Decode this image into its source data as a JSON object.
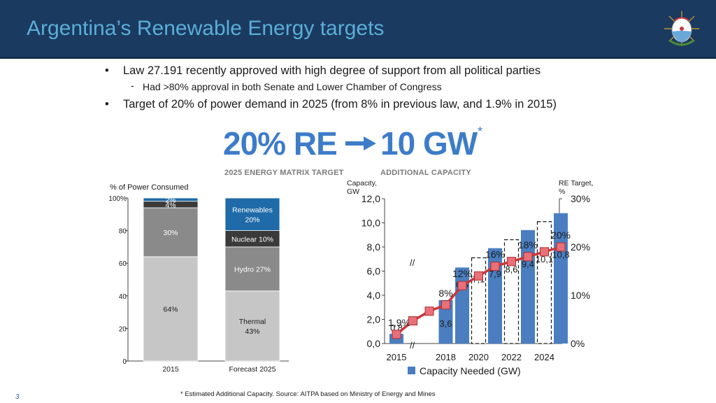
{
  "header": {
    "title": "Argentina’s Renewable Energy targets",
    "seal": "argentina-coat-of-arms-icon"
  },
  "bullets": [
    {
      "text": "Law 27.191 recently approved with high degree of support from all political parties",
      "sub": "Had >80% approval in both Senate and Lower Chamber of Congress"
    },
    {
      "text": "Target of 20% of power demand in 2025 (from 8% in previous law, and 1.9% in 2015)"
    }
  ],
  "headline": {
    "left": "20% RE",
    "right": "10 GW",
    "asterisk": "*",
    "left_sub": "2025 ENERGY MATRIX TARGET",
    "right_sub": "ADDITIONAL CAPACITY",
    "arrow": "right-arrow-icon"
  },
  "colors": {
    "accent": "#3d7cc9",
    "header_bg": "#1b3a60",
    "title": "#5aaed8",
    "capacity_bar": "#4a7ec0",
    "target_line": "#c8383c"
  },
  "chart_data": [
    {
      "type": "bar",
      "stacked": true,
      "ylabel": "% of Power Consumed",
      "ylim": [
        0,
        100
      ],
      "yticks": [
        "0",
        "20",
        "40",
        "60",
        "80",
        "100%"
      ],
      "categories": [
        "2015",
        "Forecast 2025"
      ],
      "series": [
        {
          "values": [
            64,
            43
          ],
          "labels": [
            "64%",
            "Thermal\n43%"
          ],
          "color": "#c6c6c6"
        },
        {
          "values": [
            30,
            27
          ],
          "labels": [
            "30%",
            "Hydro 27%"
          ],
          "color": "#8a8a8a"
        },
        {
          "values": [
            4,
            10
          ],
          "labels": [
            "4%",
            "Nuclear 10%"
          ],
          "color": "#3a3a3a"
        },
        {
          "values": [
            2,
            20
          ],
          "labels": [
            "2%",
            "Renewables\n20%"
          ],
          "color": "#1f6aa8"
        }
      ]
    },
    {
      "type": "bar+line",
      "ylabel": "Capacity,\nGW",
      "y2label": "RE Target,\n%",
      "ylim": [
        0,
        12
      ],
      "y2lim": [
        0,
        30
      ],
      "yticks": [
        "0,0",
        "2,0",
        "4,0",
        "6,0",
        "8,0",
        "10,0",
        "12,0"
      ],
      "y2ticks": [
        "0%",
        "10%",
        "20%",
        "30%"
      ],
      "xticks": [
        "2015",
        "2018",
        "2020",
        "2022",
        "2024"
      ],
      "x": [
        2015,
        2016,
        2017,
        2018,
        2019,
        2020,
        2021,
        2022,
        2023,
        2024,
        2025
      ],
      "bars": {
        "name": "Capacity Needed (GW)",
        "values": [
          0.8,
          null,
          null,
          3.6,
          6.3,
          7.1,
          7.9,
          8.6,
          9.4,
          10.1,
          10.8
        ],
        "labels": [
          "0,8",
          "",
          "",
          "3,6",
          "6,3",
          "7,1",
          "7,9",
          "8,6",
          "9,4",
          "10,1",
          "10,8"
        ],
        "dashed": [
          false,
          false,
          false,
          false,
          false,
          true,
          false,
          true,
          false,
          true,
          false
        ]
      },
      "line": {
        "values": [
          1.9,
          4.7,
          6.7,
          8,
          12,
          14,
          16,
          17,
          18,
          19,
          20
        ],
        "labels": [
          "1,9%",
          "",
          "",
          "8%",
          "12%",
          "",
          "16%",
          "",
          "18%",
          "",
          "20%"
        ]
      },
      "legend": "bottom"
    }
  ],
  "footnote": "* Estimated Additional Capacity. Source: AITPA based on Ministry of Energy and Mines",
  "page_number": "3"
}
